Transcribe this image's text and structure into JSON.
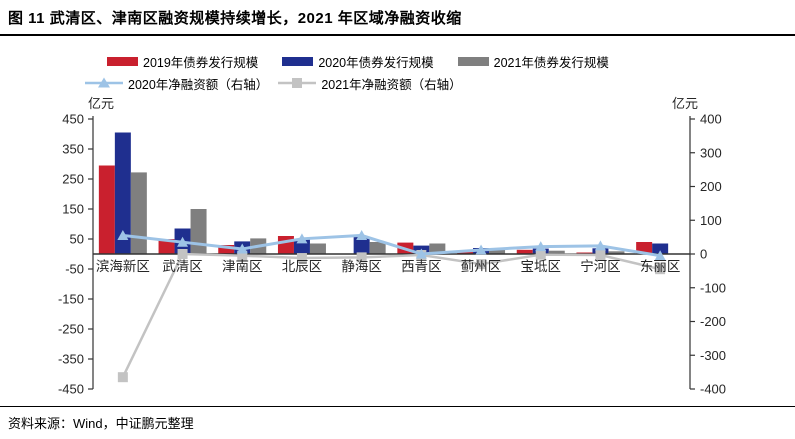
{
  "header": {
    "title": "图 11  武清区、津南区融资规模持续增长，2021 年区域净融资收缩"
  },
  "axes": {
    "left_unit": "亿元",
    "right_unit": "亿元"
  },
  "footer": {
    "source": "资料来源：Wind，中证鹏元整理"
  },
  "colors": {
    "red_2019": "#C9202E",
    "navy_2020": "#1F2F8F",
    "gray_2021": "#7F7F7F",
    "lightblue_line": "#9DC3E6",
    "lightgray_line": "#C3C3C3",
    "axis_line": "#333333",
    "axis_text": "#262626"
  },
  "chart_data": {
    "type": "bar",
    "title": "图 11  武清区、津南区融资规模持续增长，2021 年区域净融资收缩",
    "categories": [
      "滨海新区",
      "武清区",
      "津南区",
      "北辰区",
      "静海区",
      "西青区",
      "蓟州区",
      "宝坻区",
      "宁河区",
      "东丽区"
    ],
    "series": [
      {
        "name": "2019年债券发行规模",
        "type": "bar",
        "axis": "left",
        "color": "#C9202E",
        "values": [
          295,
          50,
          30,
          60,
          0,
          38,
          10,
          14,
          5,
          40
        ]
      },
      {
        "name": "2020年债券发行规模",
        "type": "bar",
        "axis": "left",
        "color": "#1F2F8F",
        "values": [
          405,
          85,
          42,
          48,
          58,
          28,
          20,
          18,
          19,
          35
        ]
      },
      {
        "name": "2021年债券发行规模",
        "type": "bar",
        "axis": "left",
        "color": "#7F7F7F",
        "values": [
          272,
          150,
          52,
          35,
          40,
          35,
          14,
          11,
          9,
          0
        ]
      },
      {
        "name": "2020年净融资额（右轴）",
        "type": "line",
        "axis": "right",
        "marker": "triangle",
        "color": "#9DC3E6",
        "values": [
          55,
          35,
          15,
          45,
          55,
          0,
          12,
          22,
          24,
          -5
        ]
      },
      {
        "name": "2021年净融资额（右轴）",
        "type": "line",
        "axis": "right",
        "marker": "square",
        "color": "#C3C3C3",
        "values": [
          -365,
          0,
          -5,
          -12,
          -10,
          -3,
          -30,
          -2,
          -3,
          -45
        ]
      }
    ],
    "left_axis": {
      "label": "亿元",
      "min": -450,
      "max": 450,
      "ticks": [
        450,
        350,
        250,
        150,
        50,
        -50,
        -150,
        -250,
        -350,
        -450
      ]
    },
    "right_axis": {
      "label": "亿元",
      "min": -400,
      "max": 400,
      "ticks": [
        400,
        300,
        200,
        100,
        0,
        -100,
        -200,
        -300,
        -400
      ]
    },
    "grid": false,
    "legend_position": "top"
  }
}
